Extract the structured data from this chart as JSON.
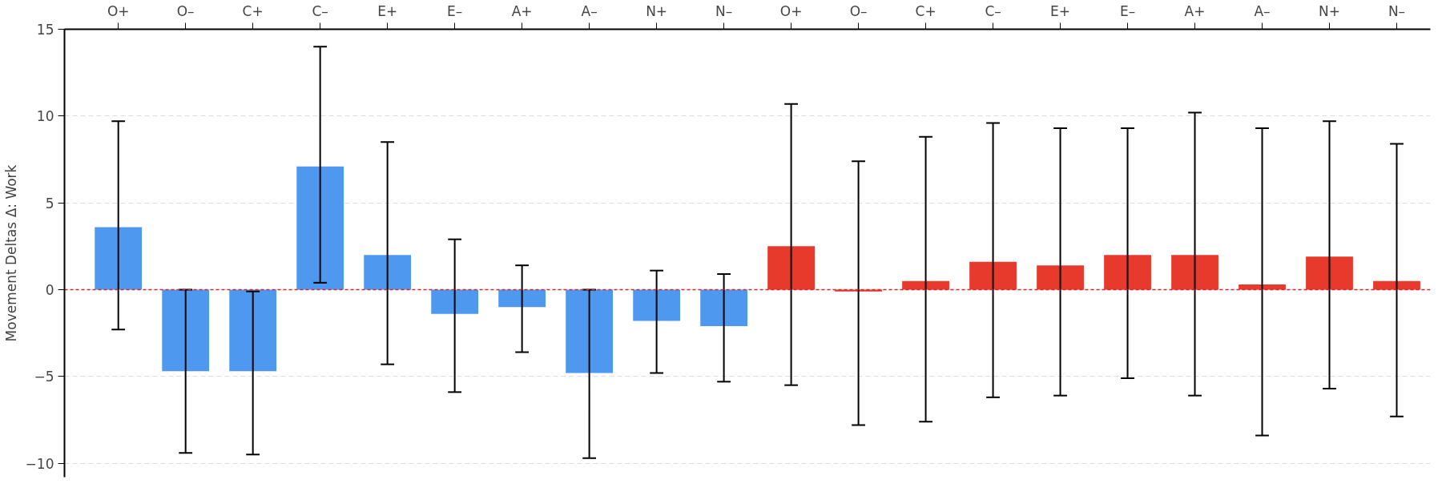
{
  "chart_data": {
    "type": "bar",
    "ylabel": "Movement Deltas Δ: Work",
    "categories": [
      "O+",
      "O–",
      "C+",
      "C–",
      "E+",
      "E–",
      "A+",
      "A–",
      "N+",
      "N–",
      "O+",
      "O–",
      "C+",
      "C–",
      "E+",
      "E–",
      "A+",
      "A–",
      "N+",
      "N–"
    ],
    "series": [
      {
        "color": "#4f98f0",
        "values": [
          3.6,
          -4.7,
          -4.7,
          7.1,
          2.0,
          -1.4,
          -1.0,
          -4.8,
          -1.8,
          -2.1,
          null,
          null,
          null,
          null,
          null,
          null,
          null,
          null,
          null,
          null
        ],
        "errors": [
          [
            -2.3,
            9.7
          ],
          [
            -9.4,
            0.0
          ],
          [
            -9.5,
            -0.1
          ],
          [
            0.4,
            14.0
          ],
          [
            -4.3,
            8.5
          ],
          [
            -5.9,
            2.9
          ],
          [
            -3.6,
            1.4
          ],
          [
            -9.7,
            0.0
          ],
          [
            -4.8,
            1.1
          ],
          [
            -5.3,
            0.9
          ],
          null,
          null,
          null,
          null,
          null,
          null,
          null,
          null,
          null,
          null
        ]
      },
      {
        "color": "#e8392d",
        "values": [
          null,
          null,
          null,
          null,
          null,
          null,
          null,
          null,
          null,
          null,
          2.5,
          -0.1,
          0.5,
          1.6,
          1.4,
          2.0,
          2.0,
          0.3,
          1.9,
          0.5
        ],
        "errors": [
          null,
          null,
          null,
          null,
          null,
          null,
          null,
          null,
          null,
          null,
          [
            -5.5,
            10.7
          ],
          [
            -7.8,
            7.4
          ],
          [
            -7.6,
            8.8
          ],
          [
            -6.2,
            9.6
          ],
          [
            -6.1,
            9.3
          ],
          [
            -5.1,
            9.3
          ],
          [
            -6.1,
            10.2
          ],
          [
            -8.4,
            9.3
          ],
          [
            -5.7,
            9.7
          ],
          [
            -7.3,
            8.4
          ]
        ]
      }
    ],
    "ylim": [
      -10.8,
      15
    ],
    "yticks": [
      -10,
      -5,
      0,
      5,
      10,
      15
    ],
    "grid": "y",
    "ref_lines": [
      {
        "axis": "y",
        "value": 0,
        "color": "#d62728",
        "line_style": "dashed"
      }
    ]
  }
}
